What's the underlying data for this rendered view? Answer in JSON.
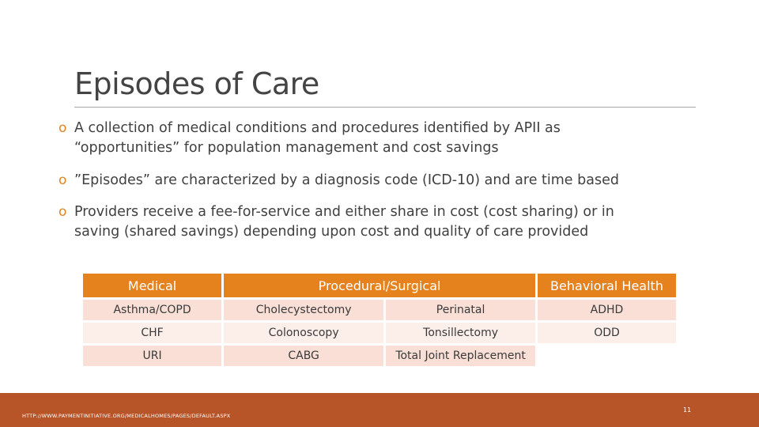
{
  "slide": {
    "title": "Episodes of Care",
    "bullets": [
      {
        "marker": "o",
        "line1": "A collection of medical conditions and procedures identified by APII as",
        "line2": "“opportunities” for population management and cost savings"
      },
      {
        "marker": "o",
        "line1": "”Episodes” are characterized by a diagnosis code (ICD-10) and are time based"
      },
      {
        "marker": "o",
        "line1": "Providers receive a fee-for-service and either share in cost (cost sharing) or in",
        "line2": "saving (shared savings) depending upon cost and quality of care provided"
      }
    ],
    "table": {
      "headers": [
        "Medical",
        "Procedural/Surgical",
        "Behavioral Health"
      ],
      "rows": [
        [
          "Asthma/COPD",
          "Cholecystectomy",
          "Perinatal",
          "ADHD"
        ],
        [
          "CHF",
          "Colonoscopy",
          "Tonsillectomy",
          "ODD"
        ],
        [
          "URI",
          "CABG",
          "Total Joint Replacement",
          ""
        ]
      ]
    },
    "footer": {
      "url": "HTTP://WWW.PAYMENTINITIATIVE.ORG/MEDICALHOMES/PAGES/DEFAULT.ASPX",
      "page_number": "11"
    },
    "colors": {
      "accent": "#e5821e",
      "footer_bar": "#b75428",
      "row_odd": "#f9dfd6",
      "row_even": "#fcefea"
    }
  }
}
